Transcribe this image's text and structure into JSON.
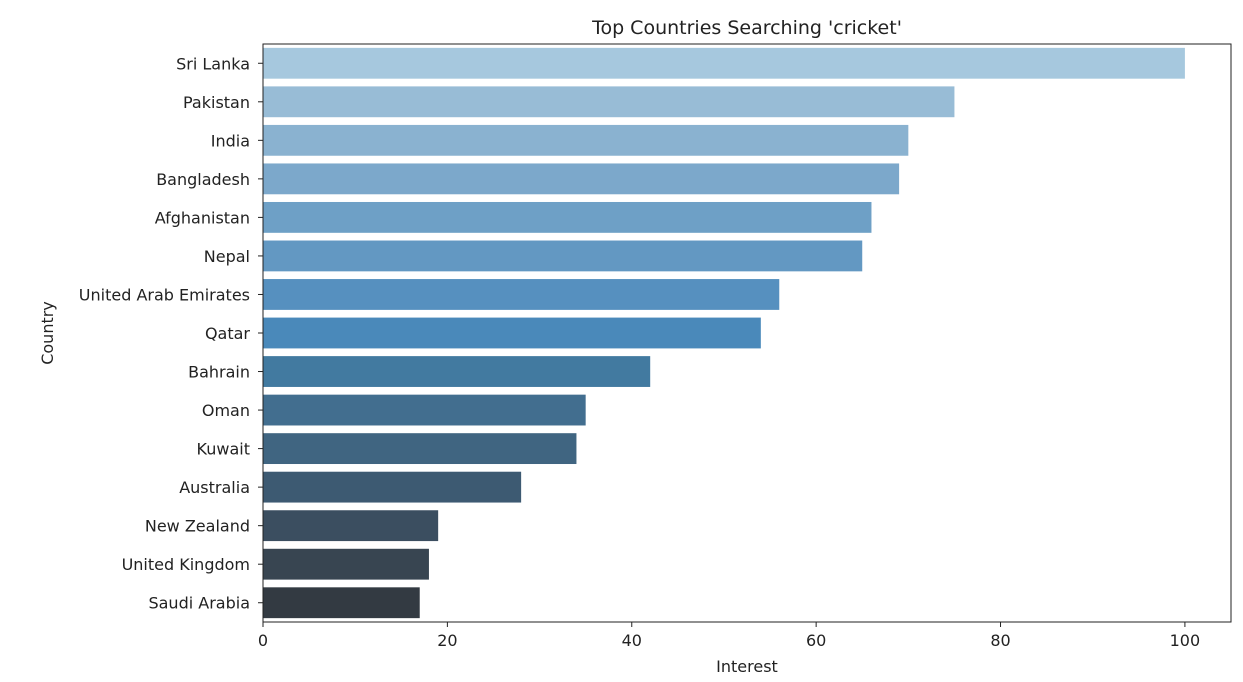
{
  "chart_data": {
    "type": "bar",
    "orientation": "horizontal",
    "title": "Top Countries Searching 'cricket'",
    "xlabel": "Interest",
    "ylabel": "Country",
    "xlim": [
      0,
      105
    ],
    "xticks": [
      0,
      20,
      40,
      60,
      80,
      100
    ],
    "grid": false,
    "categories": [
      "Sri Lanka",
      "Pakistan",
      "India",
      "Bangladesh",
      "Afghanistan",
      "Nepal",
      "United Arab Emirates",
      "Qatar",
      "Bahrain",
      "Oman",
      "Kuwait",
      "Australia",
      "New Zealand",
      "United Kingdom",
      "Saudi Arabia"
    ],
    "values": [
      100,
      75,
      70,
      69,
      66,
      65,
      56,
      54,
      42,
      35,
      34,
      28,
      19,
      18,
      17
    ],
    "colors": [
      "#a6c8de",
      "#98bcd6",
      "#8ab2d0",
      "#7ca8cb",
      "#6ea0c6",
      "#6398c2",
      "#5690bf",
      "#4a89ba",
      "#427aa0",
      "#426e8f",
      "#406581",
      "#3d5a72",
      "#3b4e60",
      "#384551",
      "#333a42"
    ]
  }
}
